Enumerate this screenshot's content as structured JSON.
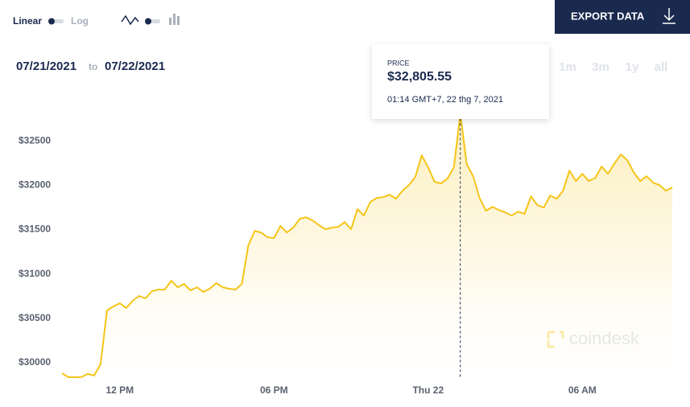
{
  "ui": {
    "scale_linear": "Linear",
    "scale_log": "Log",
    "export": "EXPORT DATA",
    "date_from": "07/21/2021",
    "date_sep": "to",
    "date_to": "07/22/2021",
    "ranges": [
      "1m",
      "3m",
      "1y",
      "all"
    ],
    "watermark": "coindesk",
    "tooltip": {
      "label": "PRICE",
      "price": "$32,805.55",
      "time": "01:14 GMT+7, 22 thg 7, 2021",
      "index": 62
    }
  },
  "chart_data": {
    "type": "area",
    "series": [
      {
        "name": "Price",
        "color": "#f5c518",
        "values": [
          29882,
          29837,
          29837,
          29837,
          29873,
          29855,
          29982,
          30589,
          30634,
          30670,
          30616,
          30697,
          30752,
          30725,
          30806,
          30824,
          30824,
          30924,
          30851,
          30888,
          30815,
          30851,
          30797,
          30833,
          30897,
          30851,
          30833,
          30824,
          30888,
          31322,
          31486,
          31467,
          31413,
          31404,
          31540,
          31467,
          31522,
          31621,
          31639,
          31603,
          31549,
          31504,
          31522,
          31531,
          31585,
          31504,
          31730,
          31658,
          31812,
          31857,
          31866,
          31893,
          31848,
          31938,
          32002,
          32092,
          32337,
          32201,
          32038,
          32020,
          32074,
          32201,
          32805.55,
          32237,
          32101,
          31857,
          31712,
          31757,
          31721,
          31694,
          31658,
          31703,
          31676,
          31875,
          31775,
          31748,
          31884,
          31848,
          31938,
          32165,
          32047,
          32129,
          32047,
          32083,
          32210,
          32129,
          32246,
          32346,
          32283,
          32147,
          32047,
          32101,
          32029,
          32002,
          31938,
          31975
        ]
      }
    ],
    "xlim": [
      0,
      95
    ],
    "xticks": [
      {
        "value": 9,
        "label": "12 PM"
      },
      {
        "value": 33,
        "label": "06 PM"
      },
      {
        "value": 57,
        "label": "Thu 22"
      },
      {
        "value": 81,
        "label": "06 AM"
      }
    ],
    "ylim": [
      29800,
      32900
    ],
    "yticks": [
      {
        "value": 30000,
        "label": "$30000"
      },
      {
        "value": 30500,
        "label": "$30500"
      },
      {
        "value": 31000,
        "label": "$31000"
      },
      {
        "value": 31500,
        "label": "$31500"
      },
      {
        "value": 32000,
        "label": "$32000"
      },
      {
        "value": 32500,
        "label": "$32500"
      }
    ],
    "grid": false
  }
}
